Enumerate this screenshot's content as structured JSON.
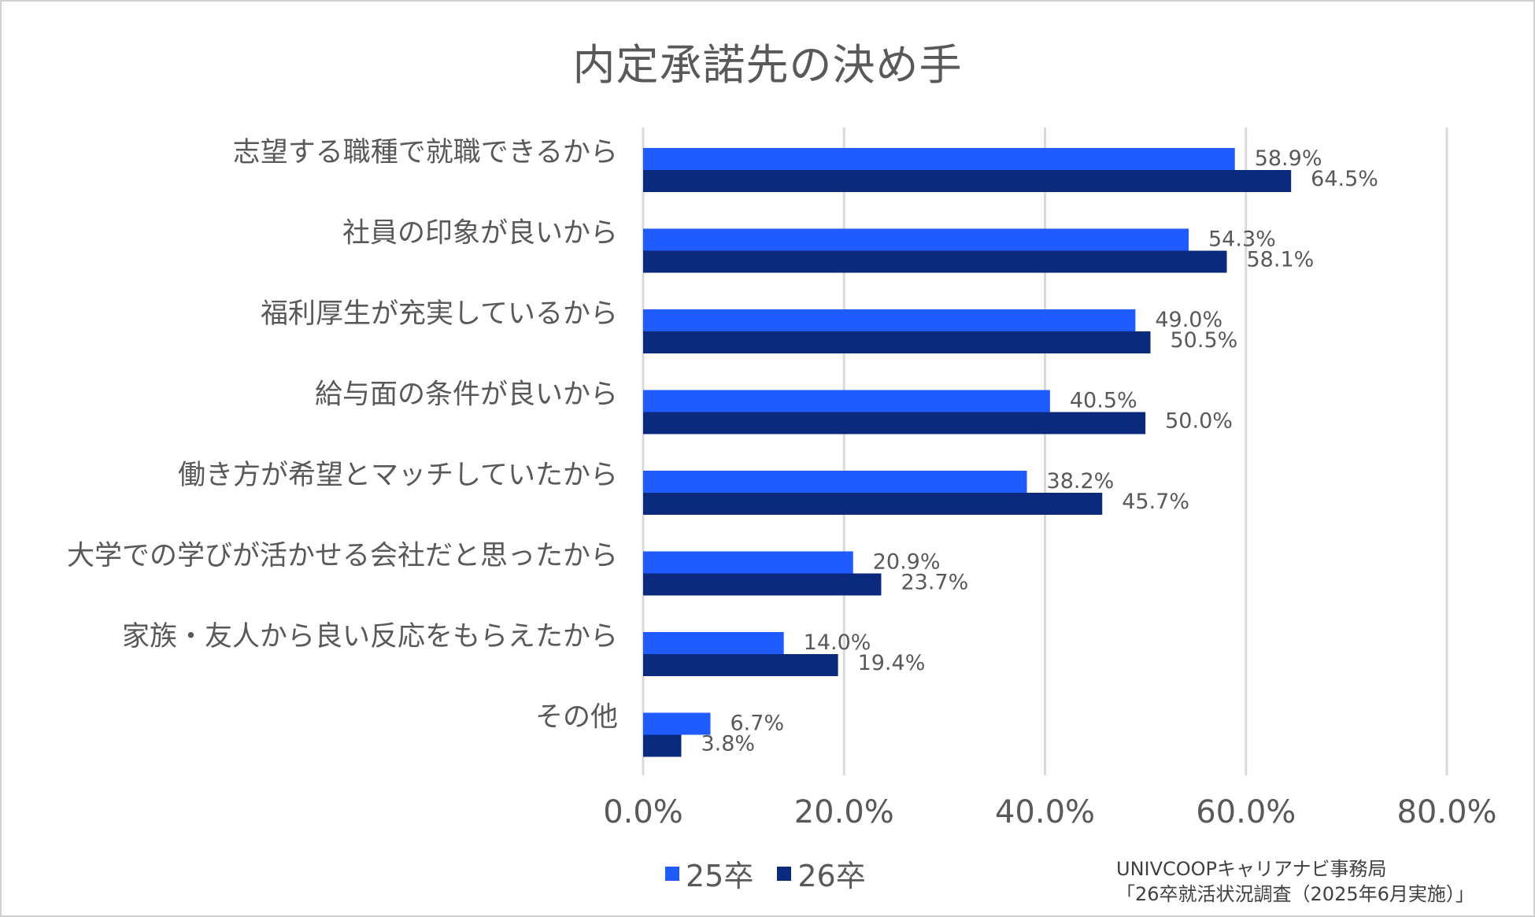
{
  "chart_data": {
    "type": "bar",
    "orientation": "horizontal",
    "title": "内定承諾先の決め手",
    "categories": [
      "志望する職種で就職できるから",
      "社員の印象が良いから",
      "福利厚生が充実しているから",
      "給与面の条件が良いから",
      "働き方が希望とマッチしていたから",
      "大学での学びが活かせる会社だと思ったから",
      "家族・友人から良い反応をもらえたから",
      "その他"
    ],
    "series": [
      {
        "name": "25卒",
        "color": "#1f5bff",
        "values": [
          58.9,
          54.3,
          49.0,
          40.5,
          38.2,
          20.9,
          14.0,
          6.7
        ],
        "labels": [
          "58.9%",
          "54.3%",
          "49.0%",
          "40.5%",
          "38.2%",
          "20.9%",
          "14.0%",
          "6.7%"
        ]
      },
      {
        "name": "26卒",
        "color": "#0b2a7d",
        "values": [
          64.5,
          58.1,
          50.5,
          50.0,
          45.7,
          23.7,
          19.4,
          3.8
        ],
        "labels": [
          "64.5%",
          "58.1%",
          "50.5%",
          "50.0%",
          "45.7%",
          "23.7%",
          "19.4%",
          "3.8%"
        ]
      }
    ],
    "xlim": [
      0,
      80
    ],
    "xticks": [
      0,
      20,
      40,
      60,
      80
    ],
    "xtick_labels": [
      "0.0%",
      "20.0%",
      "40.0%",
      "60.0%",
      "80.0%"
    ],
    "grid": true,
    "legend_position": "bottom"
  },
  "source": {
    "line1": "UNIVCOOPキャリアナビ事務局",
    "line2": "「26卒就活状況調査（2025年6月実施）」"
  }
}
